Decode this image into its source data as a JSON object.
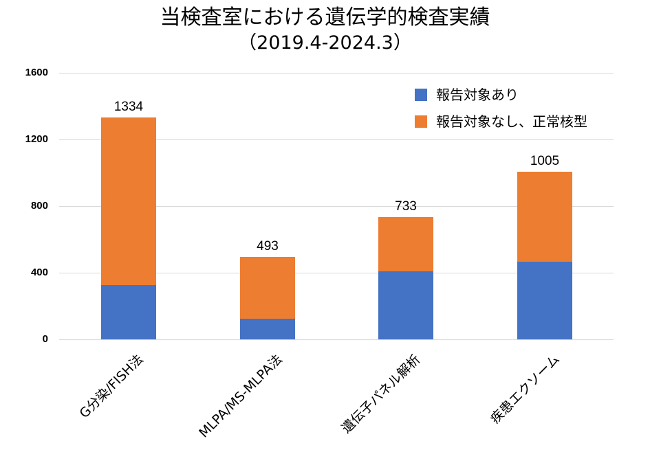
{
  "title": "当検査室における遺伝学的検査実績",
  "subtitle": "（2019.4-2024.3）",
  "colors": {
    "reportable": "#4472c4",
    "not_reportable": "#ed7d31",
    "gridline": "#d9d9d9"
  },
  "legend": {
    "items": [
      {
        "label": "報告対象あり",
        "color": "#4472c4"
      },
      {
        "label": "報告対象なし、正常核型",
        "color": "#ed7d31"
      }
    ]
  },
  "y_axis": {
    "ticks": [
      "0",
      "400",
      "800",
      "1200",
      "1600"
    ]
  },
  "bars": [
    {
      "label": "G分染/FISH法",
      "blue": 326,
      "orange": 1008,
      "total": "1334"
    },
    {
      "label": "MLPA/MS-MLPA法",
      "blue": 124,
      "orange": 369,
      "total": "493"
    },
    {
      "label": "遺伝子パネル解析",
      "blue": 408,
      "orange": 325,
      "total": "733"
    },
    {
      "label": "疾患エクソーム",
      "blue": 466,
      "orange": 539,
      "total": "1005"
    }
  ],
  "chart_data": {
    "type": "bar",
    "stacked": true,
    "title": "当検査室における遺伝学的検査実績",
    "subtitle": "（2019.4-2024.3）",
    "categories": [
      "G分染/FISH法",
      "MLPA/MS-MLPA法",
      "遺伝子パネル解析",
      "疾患エクソーム"
    ],
    "series": [
      {
        "name": "報告対象あり",
        "color": "#4472c4",
        "values": [
          326,
          124,
          408,
          466
        ]
      },
      {
        "name": "報告対象なし、正常核型",
        "color": "#ed7d31",
        "values": [
          1008,
          369,
          325,
          539
        ]
      }
    ],
    "totals": [
      1334,
      493,
      733,
      1005
    ],
    "xlabel": "",
    "ylabel": "",
    "ylim": [
      0,
      1600
    ],
    "yticks": [
      0,
      400,
      800,
      1200,
      1600
    ],
    "grid": true,
    "legend_position": "upper right"
  }
}
